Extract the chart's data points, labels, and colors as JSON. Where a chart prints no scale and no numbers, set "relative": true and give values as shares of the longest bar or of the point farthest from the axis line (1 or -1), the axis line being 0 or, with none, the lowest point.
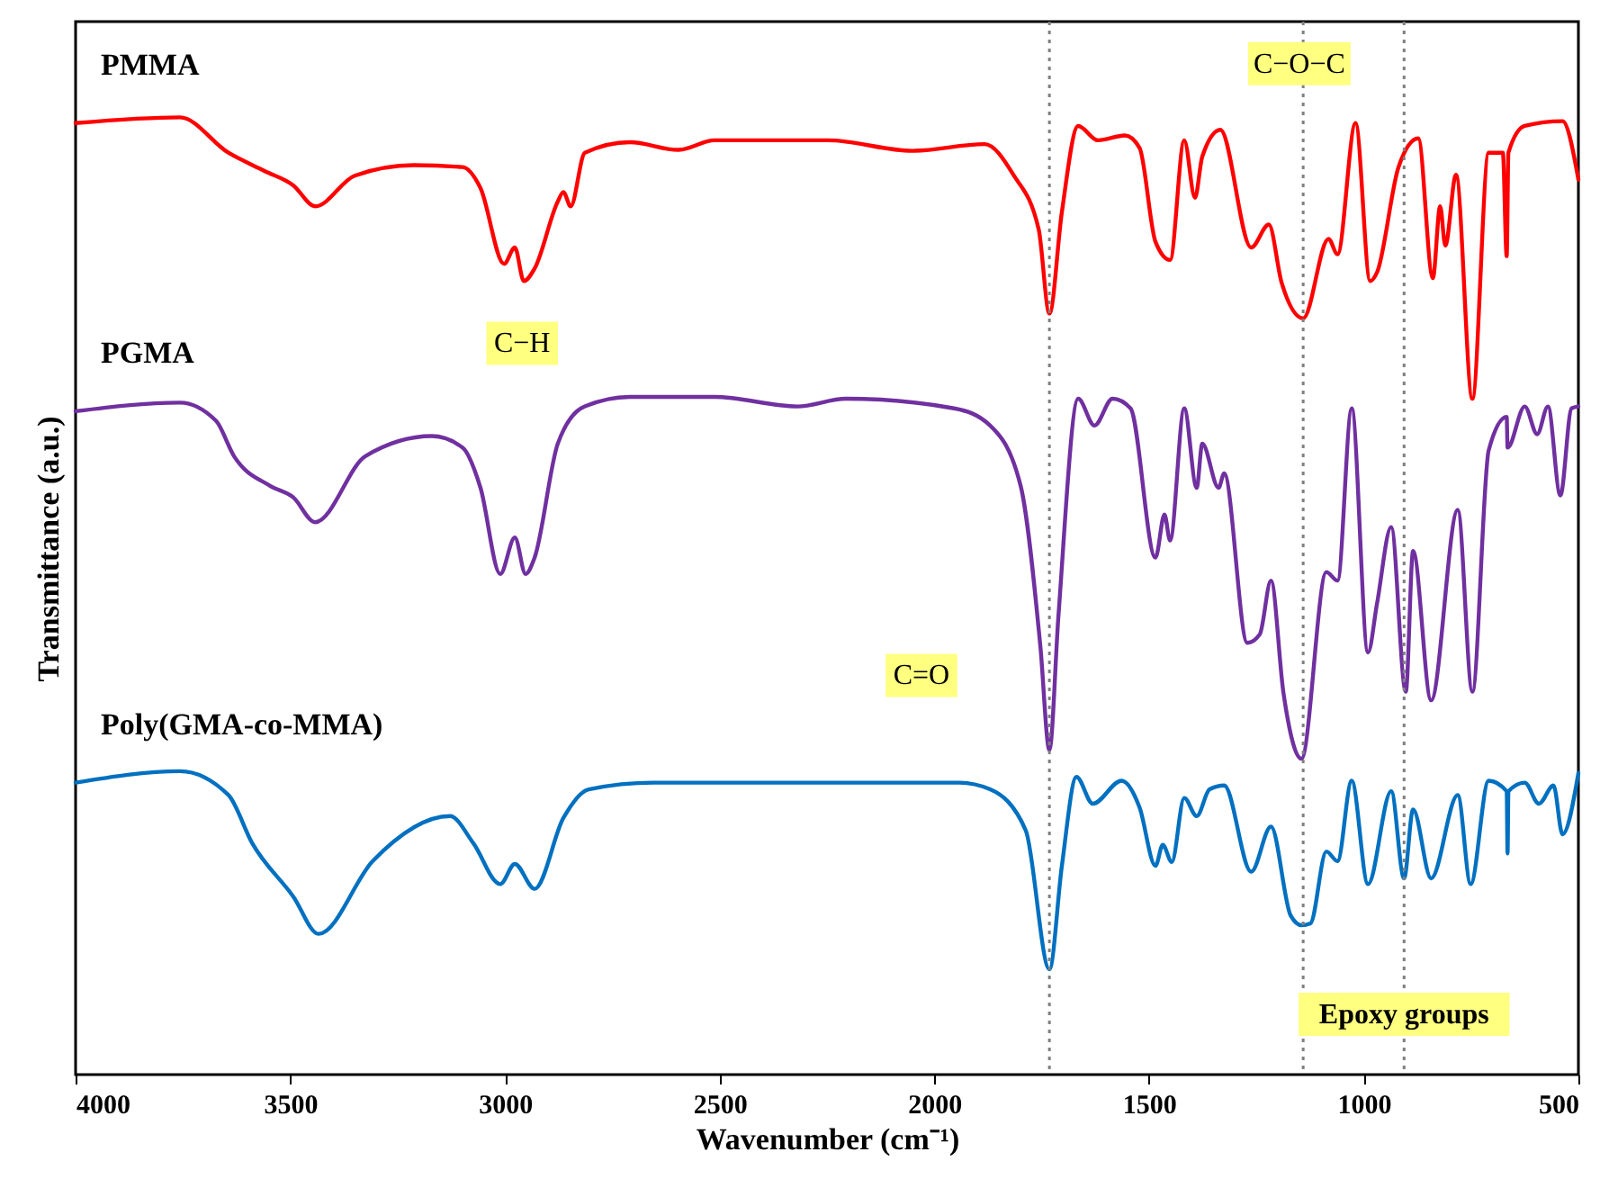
{
  "chart_data": {
    "type": "line",
    "relative": true,
    "xlabel": "Wavenumber (cm⁻¹)",
    "ylabel": "Transmittance (a.u.)",
    "xlim": [
      4000,
      500
    ],
    "xticks": [
      4000,
      3500,
      3000,
      2500,
      2000,
      1500,
      1000,
      500
    ],
    "series": [
      {
        "name": "PMMA",
        "color": "#ff0000",
        "x": [
          4000,
          3757,
          3644,
          3560,
          3493,
          3442,
          3350,
          3212,
          3099,
          3057,
          3002,
          2977,
          2956,
          2931,
          2877,
          2864,
          2847,
          2814,
          2709,
          2596,
          2512,
          2248,
          2051,
          1883,
          1816,
          1757,
          1732,
          1703,
          1665,
          1619,
          1556,
          1522,
          1485,
          1451,
          1418,
          1393,
          1376,
          1334,
          1262,
          1221,
          1191,
          1141,
          1082,
          1061,
          1019,
          985,
          969,
          919,
          873,
          839,
          822,
          810,
          785,
          747,
          709,
          676,
          667,
          663,
          625,
          537,
          500
        ],
        "values": [
          0.994,
          1,
          0.963,
          0.944,
          0.929,
          0.907,
          0.939,
          0.95,
          0.948,
          0.926,
          0.847,
          0.864,
          0.829,
          0.842,
          0.912,
          0.922,
          0.907,
          0.963,
          0.974,
          0.966,
          0.976,
          0.976,
          0.965,
          0.972,
          0.94,
          0.883,
          0.795,
          0.901,
          0.991,
          0.976,
          0.981,
          0.968,
          0.87,
          0.851,
          0.976,
          0.916,
          0.959,
          0.987,
          0.864,
          0.888,
          0.827,
          0.79,
          0.873,
          0.857,
          0.994,
          0.829,
          0.838,
          0.948,
          0.978,
          0.832,
          0.907,
          0.866,
          0.94,
          0.706,
          0.963,
          0.963,
          0.855,
          0.963,
          0.991,
          0.996,
          0.935
        ]
      },
      {
        "name": "PGMA",
        "color": "#7030a0",
        "x": [
          4000,
          3757,
          3673,
          3631,
          3547,
          3493,
          3442,
          3325,
          3170,
          3099,
          3057,
          3011,
          2977,
          2952,
          2931,
          2877,
          2814,
          2709,
          2512,
          2319,
          2206,
          1954,
          1870,
          1799,
          1753,
          1732,
          1711,
          1665,
          1627,
          1585,
          1543,
          1485,
          1464,
          1451,
          1418,
          1389,
          1376,
          1338,
          1325,
          1271,
          1242,
          1216,
          1187,
          1145,
          1087,
          1061,
          1028,
          990,
          969,
          936,
          902,
          885,
          843,
          781,
          747,
          709,
          667,
          665,
          625,
          596,
          571,
          542,
          516,
          500
        ],
        "values": [
          0.693,
          0.702,
          0.683,
          0.646,
          0.615,
          0.603,
          0.577,
          0.646,
          0.667,
          0.655,
          0.613,
          0.523,
          0.561,
          0.523,
          0.54,
          0.659,
          0.698,
          0.708,
          0.708,
          0.698,
          0.706,
          0.696,
          0.678,
          0.615,
          0.447,
          0.339,
          0.479,
          0.706,
          0.678,
          0.706,
          0.696,
          0.54,
          0.585,
          0.558,
          0.696,
          0.613,
          0.659,
          0.613,
          0.628,
          0.451,
          0.46,
          0.516,
          0.399,
          0.33,
          0.525,
          0.516,
          0.696,
          0.441,
          0.492,
          0.572,
          0.4,
          0.547,
          0.391,
          0.59,
          0.4,
          0.652,
          0.687,
          0.655,
          0.698,
          0.669,
          0.698,
          0.605,
          0.696,
          0.698
        ]
      },
      {
        "name": "Poly(GMA-co-MMA)",
        "color": "#0070c0",
        "x": [
          4000,
          3757,
          3644,
          3589,
          3493,
          3434,
          3308,
          3128,
          3074,
          3011,
          2977,
          2931,
          2864,
          2805,
          2654,
          2248,
          1942,
          1870,
          1787,
          1732,
          1703,
          1669,
          1631,
          1564,
          1522,
          1485,
          1468,
          1447,
          1418,
          1389,
          1359,
          1325,
          1262,
          1216,
          1170,
          1145,
          1124,
          1087,
          1061,
          1028,
          990,
          936,
          906,
          885,
          843,
          781,
          751,
          709,
          667,
          665,
          663,
          625,
          592,
          558,
          537,
          500
        ],
        "values": [
          0.305,
          0.317,
          0.292,
          0.242,
          0.186,
          0.147,
          0.223,
          0.27,
          0.242,
          0.199,
          0.22,
          0.194,
          0.268,
          0.298,
          0.305,
          0.305,
          0.305,
          0.298,
          0.255,
          0.11,
          0.218,
          0.311,
          0.283,
          0.307,
          0.279,
          0.218,
          0.24,
          0.222,
          0.289,
          0.27,
          0.298,
          0.302,
          0.212,
          0.259,
          0.166,
          0.156,
          0.158,
          0.233,
          0.223,
          0.307,
          0.199,
          0.296,
          0.205,
          0.277,
          0.205,
          0.292,
          0.199,
          0.307,
          0.296,
          0.231,
          0.296,
          0.305,
          0.283,
          0.302,
          0.251,
          0.315
        ]
      }
    ],
    "ref_lines": [
      {
        "axis": "x",
        "value": 1732,
        "color": "#808080",
        "line_style": "dotted"
      },
      {
        "axis": "x",
        "value": 1141,
        "color": "#808080",
        "line_style": "dotted"
      },
      {
        "axis": "x",
        "value": 906,
        "color": "#808080",
        "line_style": "dotted"
      }
    ],
    "annotations": [
      {
        "text": "C−H",
        "x": 2960,
        "y": 0.764
      },
      {
        "text": "C=O",
        "x": 2030,
        "y": 0.417
      },
      {
        "text": "C−O−C",
        "x": 1150,
        "y": 1.056
      },
      {
        "text": "Epoxy groups",
        "x": 906,
        "y": 0.063
      }
    ]
  }
}
